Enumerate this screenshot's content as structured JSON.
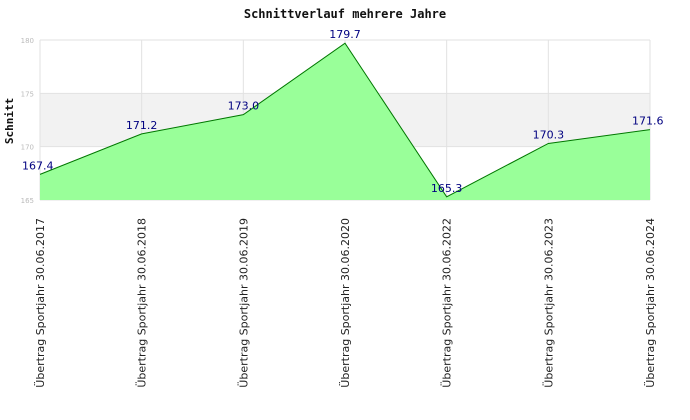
{
  "chart_data": {
    "type": "area",
    "title": "Schnittverlauf mehrere Jahre",
    "ylabel": "Schnitt",
    "xlabel": "",
    "categories": [
      "Übertrag Sportjahr 30.06.2017",
      "Übertrag Sportjahr 30.06.2018",
      "Übertrag Sportjahr 30.06.2019",
      "Übertrag Sportjahr 30.06.2020",
      "Übertrag Sportjahr 30.06.2022",
      "Übertrag Sportjahr 30.06.2023",
      "Übertrag Sportjahr 30.06.2024"
    ],
    "values": [
      167.4,
      171.2,
      173.0,
      179.7,
      165.3,
      170.3,
      171.6
    ],
    "value_labels": [
      "167.4",
      "171.2",
      "173.0",
      "179.7",
      "165.3",
      "170.3",
      "171.6"
    ],
    "ylim": [
      165,
      180
    ],
    "yticks": [
      165,
      170,
      175,
      180
    ],
    "ytick_labels": [
      "165",
      "170",
      "175",
      "180"
    ],
    "grid": true,
    "legend": "none",
    "colors": {
      "fill": "#99ff99",
      "line": "#007700",
      "band": "#f2f2f2",
      "grid": "#e2e2e2",
      "value_label": "#000080"
    }
  }
}
